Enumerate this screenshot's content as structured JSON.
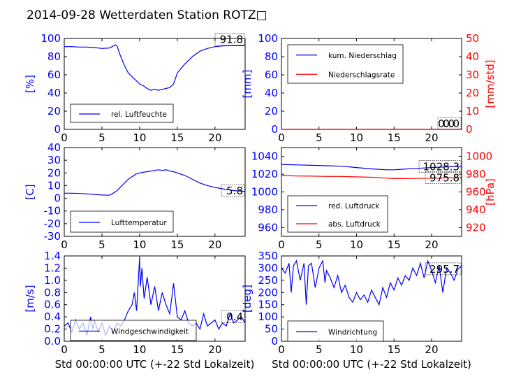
{
  "figure": {
    "title": "2014-09-28 Wetterdaten Station ROTZ□"
  },
  "colors": {
    "blue": "#0000ff",
    "red": "#ff0000",
    "black": "#000000"
  },
  "chart_data": [
    {
      "id": "humidity",
      "type": "line",
      "ylabel": "[%]",
      "xlabel": "",
      "xlim": [
        0,
        24
      ],
      "ylim": [
        0,
        100
      ],
      "xticks": [
        0,
        5,
        10,
        15,
        20
      ],
      "yticks": [
        0,
        20,
        40,
        60,
        80,
        100
      ],
      "current_value": "91.8",
      "legend": {
        "placement": "lower-left"
      },
      "series": [
        {
          "name": "rel. Luftfeuchte",
          "color": "#0000ff",
          "axis": "left",
          "x": [
            0,
            1,
            2,
            3,
            4,
            5,
            6,
            6.8,
            7,
            7.4,
            8,
            8.5,
            9,
            9.5,
            10,
            10.5,
            11,
            11.5,
            12,
            12.5,
            13,
            13.5,
            14,
            14.5,
            15,
            16,
            17,
            18,
            19,
            20,
            21,
            22,
            23,
            24
          ],
          "y": [
            91,
            91,
            90.5,
            90.5,
            90,
            89,
            89.5,
            93,
            92,
            82,
            70,
            62,
            58,
            54,
            50,
            48,
            45,
            43,
            44,
            43,
            44,
            45,
            46,
            50,
            62,
            72,
            80,
            86,
            89,
            91,
            91.8,
            92,
            92,
            92
          ]
        }
      ]
    },
    {
      "id": "precip",
      "type": "line",
      "ylabel": "[mm]",
      "ylabel_right": "[mm/std]",
      "xlabel": "",
      "xlim": [
        0,
        24
      ],
      "ylim": [
        0,
        100
      ],
      "ylim_right": [
        0,
        50
      ],
      "xticks": [
        0,
        5,
        10,
        15,
        20
      ],
      "yticks": [
        0,
        20,
        40,
        60,
        80,
        100
      ],
      "yticks_right": [
        0,
        10,
        20,
        30,
        40,
        50
      ],
      "current_value": "0.0",
      "current_value_2": "0.0",
      "legend": {
        "placement": "upper-left"
      },
      "series": [
        {
          "name": "kum. Niederschlag",
          "color": "#0000ff",
          "axis": "left",
          "x": [
            0,
            24
          ],
          "y": [
            0,
            0
          ]
        },
        {
          "name": "Niederschlagsrate",
          "color": "#ff0000",
          "axis": "right",
          "x": [
            0,
            24
          ],
          "y": [
            0,
            0
          ]
        }
      ]
    },
    {
      "id": "temperature",
      "type": "line",
      "ylabel": "[C]",
      "xlabel": "",
      "xlim": [
        0,
        24
      ],
      "ylim": [
        -30,
        40
      ],
      "xticks": [
        0,
        5,
        10,
        15,
        20
      ],
      "yticks": [
        -30,
        -20,
        -10,
        0,
        10,
        20,
        30,
        40
      ],
      "current_value": "5.8",
      "legend": {
        "placement": "lower-left"
      },
      "series": [
        {
          "name": "Lufttemperatur",
          "color": "#0000ff",
          "axis": "left",
          "x": [
            0,
            1,
            2,
            3,
            4,
            5,
            6,
            6.5,
            7,
            7.5,
            8,
            8.5,
            9,
            9.5,
            10,
            10.5,
            11,
            11.5,
            12,
            12.5,
            13,
            13.5,
            14,
            14.5,
            15,
            16,
            17,
            18,
            19,
            20,
            21,
            22,
            23,
            24
          ],
          "y": [
            4,
            4,
            3.8,
            3.5,
            3,
            2.6,
            2.4,
            4,
            6,
            9,
            12,
            15,
            17,
            19,
            20,
            20.5,
            21,
            21.5,
            22,
            22.5,
            22,
            22.5,
            21.5,
            21,
            20,
            18,
            15,
            12,
            10,
            8.5,
            7.5,
            6.5,
            5.8,
            5.5
          ]
        }
      ]
    },
    {
      "id": "pressure",
      "type": "line",
      "ylabel": "",
      "ylabel_right": "[hPa]",
      "xlabel": "",
      "xlim": [
        0,
        24
      ],
      "ylim": [
        950,
        1050
      ],
      "ylim_right": [
        910,
        1010
      ],
      "xticks": [
        0,
        5,
        10,
        15,
        20
      ],
      "yticks": [
        960,
        980,
        1000,
        1020,
        1040
      ],
      "yticks_right": [
        920,
        940,
        960,
        980,
        1000
      ],
      "current_value": "1028.3",
      "current_value_2": "975.8",
      "legend": {
        "placement": "lower-left"
      },
      "series": [
        {
          "name": "red. Luftdruck",
          "color": "#0000ff",
          "axis": "left",
          "x": [
            0,
            2,
            4,
            6,
            8,
            10,
            12,
            14,
            15,
            16,
            18,
            20,
            22,
            24
          ],
          "y": [
            1031,
            1030.5,
            1030,
            1029.5,
            1029,
            1027.5,
            1026,
            1025,
            1025,
            1025.5,
            1026.5,
            1027.5,
            1028.3,
            1029
          ]
        },
        {
          "name": "abs. Luftdruck",
          "color": "#ff0000",
          "axis": "right",
          "x": [
            0,
            2,
            4,
            6,
            8,
            10,
            12,
            14,
            15,
            16,
            18,
            20,
            22,
            24
          ],
          "y": [
            978.5,
            978,
            977.8,
            977.5,
            977.5,
            977,
            976.5,
            975.5,
            975,
            975,
            975.2,
            975.5,
            975.8,
            976
          ]
        }
      ]
    },
    {
      "id": "wind_speed",
      "type": "line",
      "ylabel": "[m/s]",
      "xlabel": "Std 00:00:00 UTC (+-22 Std Lokalzeit)",
      "xlim": [
        0,
        24
      ],
      "ylim": [
        0,
        1.4
      ],
      "xticks": [
        0,
        5,
        10,
        15,
        20
      ],
      "yticks": [
        0.0,
        0.2,
        0.4,
        0.6,
        0.8,
        1.0,
        1.2,
        1.4
      ],
      "current_value": "0.4",
      "legend": {
        "placement": "lower-center"
      },
      "series": [
        {
          "name": "Windgeschwindigkeit",
          "color": "#0000ff",
          "axis": "left",
          "x": [
            0,
            0.5,
            1,
            1.5,
            2,
            2.5,
            3,
            3.5,
            3.8,
            4,
            4.5,
            5,
            5.5,
            6,
            6.5,
            7,
            7.5,
            8,
            8.5,
            9,
            9.3,
            9.6,
            10,
            10.1,
            10.3,
            10.6,
            11,
            11.5,
            12,
            12.5,
            13,
            13.5,
            14,
            14.5,
            15,
            15.5,
            16,
            16.5,
            17,
            17.5,
            18,
            18.5,
            19,
            19.5,
            20,
            20.5,
            21,
            21.5,
            22,
            22.5,
            23,
            23.5,
            24
          ],
          "y": [
            0.25,
            0.3,
            0.15,
            0.35,
            0.2,
            0.3,
            0.1,
            0.4,
            0.2,
            0.35,
            0.15,
            0.3,
            0.1,
            0.25,
            0.15,
            0.3,
            0.25,
            0.35,
            0.5,
            0.6,
            0.8,
            0.5,
            1.37,
            0.9,
            1.2,
            0.7,
            1.05,
            0.6,
            0.9,
            0.5,
            0.8,
            0.6,
            0.45,
            0.95,
            0.4,
            0.35,
            0.5,
            0.3,
            0.25,
            0.3,
            0.2,
            0.45,
            0.25,
            0.3,
            0.35,
            0.2,
            0.3,
            0.25,
            0.45,
            0.3,
            0.35,
            0.4,
            0.3
          ]
        }
      ]
    },
    {
      "id": "wind_direction",
      "type": "line",
      "ylabel": "[deg]",
      "xlabel": "Std 00:00:00 UTC (+-22 Std Lokalzeit)",
      "xlim": [
        0,
        24
      ],
      "ylim": [
        0,
        350
      ],
      "xticks": [
        0,
        5,
        10,
        15,
        20
      ],
      "yticks": [
        0,
        50,
        100,
        150,
        200,
        250,
        300,
        350
      ],
      "current_value": "295.7",
      "legend": {
        "placement": "lower-left"
      },
      "series": [
        {
          "name": "Windrichtung",
          "color": "#0000ff",
          "axis": "left",
          "x": [
            0,
            0.5,
            1,
            1.3,
            1.6,
            2,
            2.5,
            3,
            3.3,
            3.6,
            4,
            4.5,
            5,
            5.5,
            5.8,
            6,
            6.5,
            7,
            7.5,
            8,
            8.5,
            9,
            9.5,
            10,
            10.5,
            11,
            11.5,
            12,
            12.5,
            13,
            13.5,
            14,
            14.5,
            15,
            15.5,
            16,
            16.5,
            17,
            17.5,
            18,
            18.5,
            19,
            19.5,
            20,
            20.5,
            21,
            21.5,
            22,
            22.5,
            23,
            23.5,
            24
          ],
          "y": [
            300,
            280,
            320,
            200,
            310,
            330,
            250,
            320,
            150,
            310,
            320,
            220,
            300,
            330,
            240,
            290,
            260,
            220,
            270,
            200,
            230,
            180,
            160,
            200,
            170,
            190,
            160,
            210,
            180,
            150,
            220,
            180,
            240,
            210,
            260,
            230,
            270,
            250,
            300,
            270,
            320,
            260,
            330,
            290,
            240,
            310,
            200,
            300,
            280,
            250,
            295,
            310
          ]
        }
      ]
    }
  ]
}
